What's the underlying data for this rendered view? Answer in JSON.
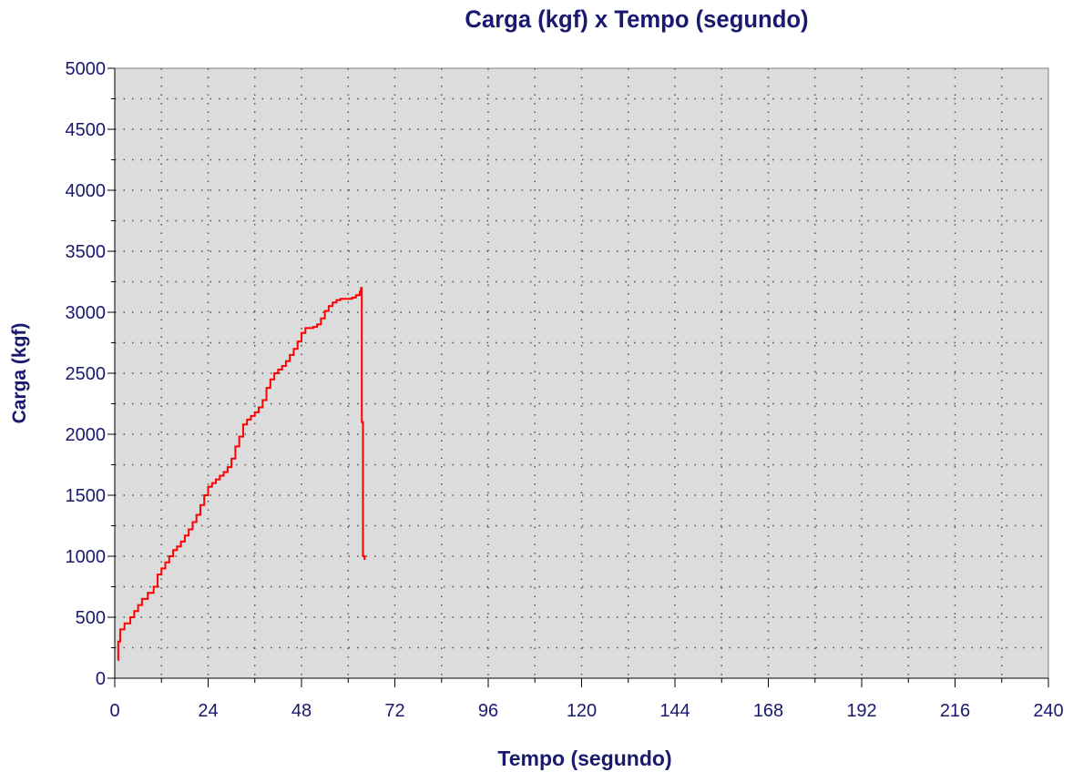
{
  "chart_data": {
    "type": "line",
    "title": "Carga (kgf) x Tempo (segundo)",
    "xlabel": "Tempo (segundo)",
    "ylabel": "Carga (kgf)",
    "xlim": [
      0,
      240
    ],
    "ylim": [
      0,
      5000
    ],
    "x_ticks": [
      0,
      24,
      48,
      72,
      96,
      120,
      144,
      168,
      192,
      216,
      240
    ],
    "y_ticks": [
      0,
      500,
      1000,
      1500,
      2000,
      2500,
      3000,
      3500,
      4000,
      4500,
      5000
    ],
    "x_tick_labels": [
      "0",
      "24",
      "48",
      "72",
      "96",
      "120",
      "144",
      "168",
      "192",
      "216",
      "240"
    ],
    "y_tick_labels": [
      "0",
      "500",
      "1000",
      "1500",
      "2000",
      "2500",
      "3000",
      "3500",
      "4000",
      "4500",
      "5000"
    ],
    "grid": true,
    "colors": {
      "background": "#dcdcdc",
      "line": "#ff0000",
      "text": "#191970",
      "grid": "#505050"
    },
    "series": [
      {
        "x": [
          0.7,
          0.9,
          1.4,
          2.5,
          4,
          5,
          6,
          7,
          8.5,
          10,
          11,
          12,
          13,
          14,
          15,
          16,
          17,
          18,
          19,
          20,
          21,
          22,
          23,
          24,
          25,
          26,
          27,
          28,
          29,
          30,
          31,
          32,
          33,
          34,
          35,
          36,
          37,
          38,
          39,
          40,
          41,
          42,
          43,
          44,
          45,
          46,
          47,
          48,
          49,
          50,
          51,
          52,
          53,
          54,
          55,
          56,
          57,
          58,
          59,
          60,
          61,
          62,
          63,
          63.3,
          63.5,
          63.5,
          63.8,
          63.8,
          64.2
        ],
        "y": [
          150,
          300,
          400,
          450,
          500,
          550,
          600,
          650,
          700,
          750,
          850,
          900,
          950,
          1000,
          1050,
          1080,
          1120,
          1170,
          1220,
          1280,
          1340,
          1420,
          1500,
          1570,
          1600,
          1630,
          1660,
          1690,
          1730,
          1800,
          1900,
          1980,
          2080,
          2120,
          2150,
          2180,
          2220,
          2280,
          2380,
          2450,
          2500,
          2530,
          2560,
          2600,
          2650,
          2700,
          2760,
          2830,
          2870,
          2870,
          2880,
          2900,
          2950,
          3010,
          3050,
          3080,
          3100,
          3110,
          3110,
          3110,
          3120,
          3140,
          3170,
          3200,
          3150,
          2100,
          2100,
          1000,
          970
        ]
      }
    ]
  }
}
